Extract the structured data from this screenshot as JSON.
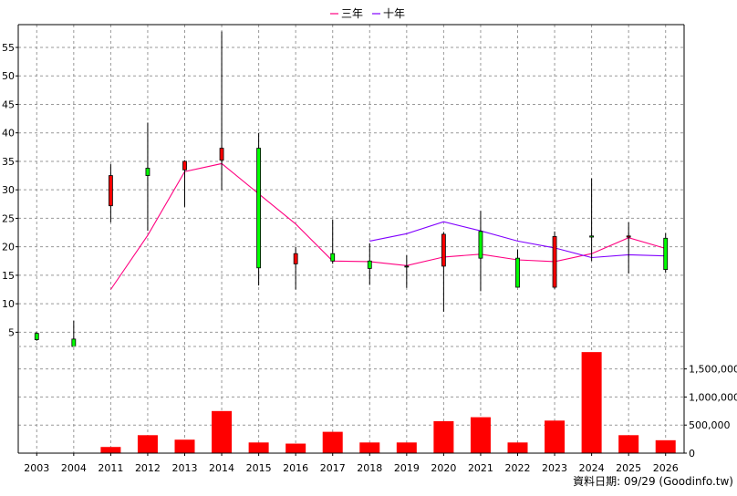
{
  "legend": {
    "three_year": "三年",
    "ten_year": "十年"
  },
  "source_note": "資料日期: 09/29  (Goodinfo.tw)",
  "colors": {
    "up": "#00ff00",
    "down": "#ff0000",
    "ma3": "#ff0080",
    "ma10": "#8000ff",
    "volume": "#ff0000",
    "grid": "#999999"
  },
  "chart_data": {
    "type": "candlestick+bar",
    "categories": [
      "2003",
      "2004",
      "2011",
      "2012",
      "2013",
      "2014",
      "2015",
      "2016",
      "2017",
      "2018",
      "2019",
      "2020",
      "2021",
      "2022",
      "2023",
      "2024",
      "2025",
      "2026"
    ],
    "price_axis": {
      "min": 2.5,
      "max": 59,
      "ticks": [
        5,
        10,
        15,
        20,
        25,
        30,
        35,
        40,
        45,
        50,
        55
      ]
    },
    "volume_axis": {
      "min": 0,
      "max": 1900000,
      "ticks": [
        0,
        500000,
        1000000,
        1500000
      ],
      "tick_labels": [
        "0",
        "500,000",
        "1,000,000",
        "1,500,000"
      ]
    },
    "candles": [
      {
        "open": 3.7,
        "close": 4.8,
        "high": 5.0,
        "low": 3.5
      },
      {
        "open": 2.5,
        "close": 3.8,
        "high": 7.0,
        "low": 2.4
      },
      {
        "open": 32.5,
        "close": 27.2,
        "high": 34.5,
        "low": 24.3
      },
      {
        "open": 32.5,
        "close": 33.8,
        "high": 41.8,
        "low": 22.8
      },
      {
        "open": 35.0,
        "close": 33.5,
        "high": 35.2,
        "low": 27.0
      },
      {
        "open": 37.3,
        "close": 35.2,
        "high": 57.8,
        "low": 30.0
      },
      {
        "open": 16.3,
        "close": 37.3,
        "high": 40.0,
        "low": 13.2
      },
      {
        "open": 18.8,
        "close": 17.0,
        "high": 20.0,
        "low": 12.5
      },
      {
        "open": 17.5,
        "close": 18.8,
        "high": 24.8,
        "low": 17.0
      },
      {
        "open": 16.2,
        "close": 17.5,
        "high": 20.6,
        "low": 13.3
      },
      {
        "open": 16.5,
        "close": 16.6,
        "high": 18.5,
        "low": 12.8
      },
      {
        "open": 22.2,
        "close": 16.6,
        "high": 22.6,
        "low": 8.6
      },
      {
        "open": 18.0,
        "close": 22.7,
        "high": 26.3,
        "low": 12.2
      },
      {
        "open": 12.9,
        "close": 18.0,
        "high": 19.5,
        "low": 12.9
      },
      {
        "open": 21.8,
        "close": 12.9,
        "high": 22.7,
        "low": 12.6
      },
      {
        "open": 21.7,
        "close": 21.9,
        "high": 32.0,
        "low": 17.5
      },
      {
        "open": 21.9,
        "close": 21.7,
        "high": 24.3,
        "low": 15.3
      },
      {
        "open": 16.0,
        "close": 21.5,
        "high": 22.4,
        "low": 15.5
      }
    ],
    "series": [
      {
        "name": "三年",
        "values": [
          null,
          null,
          12.5,
          22.0,
          33.2,
          34.6,
          29.3,
          24.0,
          17.5,
          17.4,
          16.7,
          18.2,
          18.7,
          17.7,
          17.4,
          18.8,
          21.6,
          19.7
        ]
      },
      {
        "name": "十年",
        "values": [
          null,
          null,
          null,
          null,
          null,
          null,
          null,
          null,
          null,
          21.0,
          22.3,
          24.4,
          22.8,
          21.0,
          19.8,
          18.1,
          18.6,
          18.4
        ]
      }
    ],
    "volume": [
      0,
      8000,
      110000,
      320000,
      240000,
      750000,
      190000,
      170000,
      380000,
      190000,
      190000,
      570000,
      640000,
      190000,
      580000,
      1800000,
      320000,
      230000
    ],
    "grid": true,
    "legend_position": "top-center"
  }
}
